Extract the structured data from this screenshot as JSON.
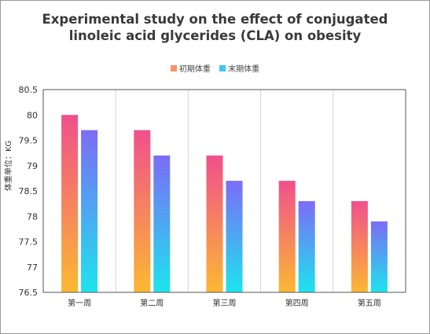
{
  "chart_data": {
    "type": "bar",
    "title": [
      "Experimental study on the effect of conjugated",
      "linoleic acid glycerides (CLA) on obesity"
    ],
    "ylabel": "体重单位：KG",
    "xlabel": "",
    "categories": [
      "第一周",
      "第二周",
      "第三周",
      "第四周",
      "第五周"
    ],
    "series": [
      {
        "name": "初期体重",
        "values": [
          80.0,
          79.7,
          79.2,
          78.7,
          78.3
        ],
        "gradient": [
          "#f0508c",
          "#fbb832"
        ]
      },
      {
        "name": "末期体重",
        "values": [
          79.7,
          79.2,
          78.7,
          78.3,
          77.9
        ],
        "gradient": [
          "#7c6cf6",
          "#1de4ee"
        ]
      }
    ],
    "ylim": [
      76.5,
      80.5
    ],
    "yticks": [
      "76.5",
      "77",
      "77.5",
      "78",
      "78.5",
      "79",
      "79.5",
      "80",
      "80.5"
    ],
    "grid": "vertical",
    "legend_position": "top-center"
  },
  "legend_colors": [
    "#f79468",
    "#3cc8f2"
  ]
}
